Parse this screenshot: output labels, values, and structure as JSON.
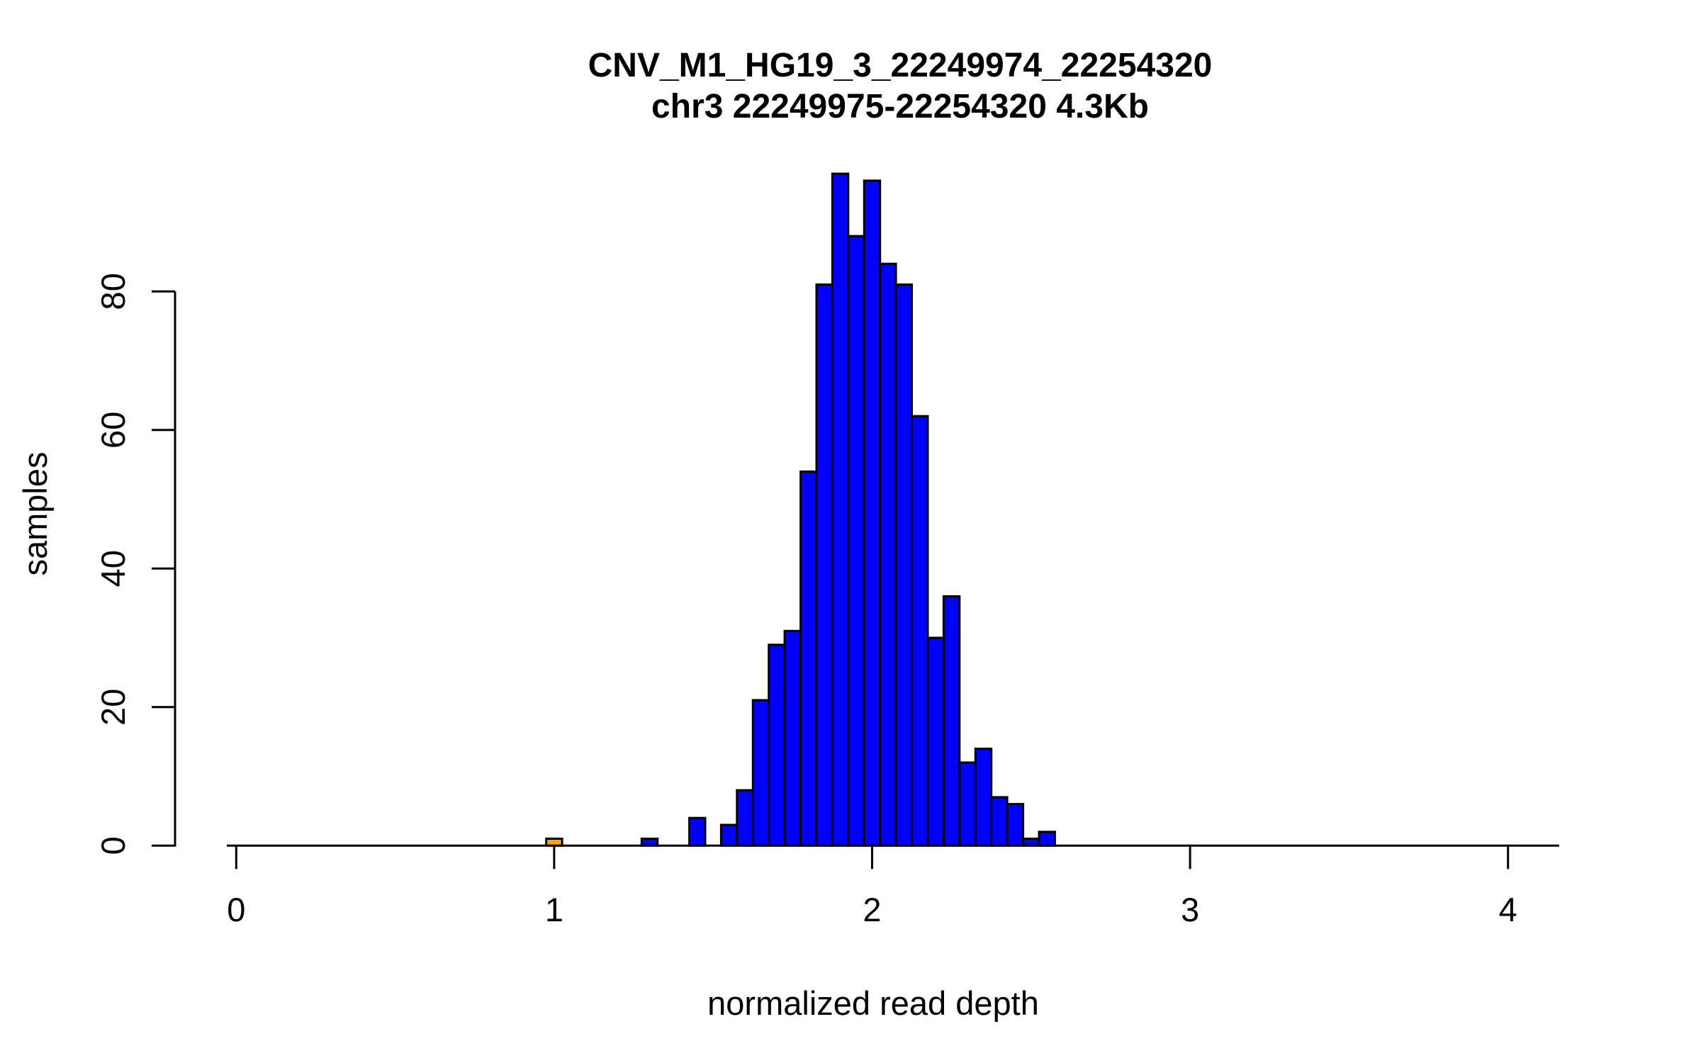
{
  "title": {
    "line1": "CNV_M1_HG19_3_22249974_22254320",
    "line2": "chr3 22249975-22254320 4.3Kb"
  },
  "chart_data": {
    "type": "bar",
    "subtype": "histogram",
    "title": "CNV_M1_HG19_3_22249974_22254320",
    "subtitle": "chr3 22249975-22254320 4.3Kb",
    "xlabel": "normalized read depth",
    "ylabel": "samples",
    "x_ticks": [
      0,
      1,
      2,
      3,
      4
    ],
    "y_ticks": [
      0,
      20,
      40,
      60,
      80
    ],
    "xlim": [
      -0.03,
      4.16
    ],
    "ylim": [
      0,
      100
    ],
    "grid": "off",
    "legend": "none",
    "bin_width": 0.05,
    "bar_fill_default": "#0000FF",
    "highlight_fill": "#FFA500",
    "bar_border_color": "#000000",
    "axis_color": "#000000",
    "bars": [
      {
        "center": 1.0,
        "count": 1,
        "color": "#FFA500"
      },
      {
        "center": 1.3,
        "count": 1,
        "color": "#0000FF"
      },
      {
        "center": 1.45,
        "count": 4,
        "color": "#0000FF"
      },
      {
        "center": 1.55,
        "count": 3,
        "color": "#0000FF"
      },
      {
        "center": 1.6,
        "count": 8,
        "color": "#0000FF"
      },
      {
        "center": 1.65,
        "count": 21,
        "color": "#0000FF"
      },
      {
        "center": 1.7,
        "count": 29,
        "color": "#0000FF"
      },
      {
        "center": 1.75,
        "count": 31,
        "color": "#0000FF"
      },
      {
        "center": 1.8,
        "count": 54,
        "color": "#0000FF"
      },
      {
        "center": 1.85,
        "count": 81,
        "color": "#0000FF"
      },
      {
        "center": 1.9,
        "count": 97,
        "color": "#0000FF"
      },
      {
        "center": 1.95,
        "count": 88,
        "color": "#0000FF"
      },
      {
        "center": 2.0,
        "count": 96,
        "color": "#0000FF"
      },
      {
        "center": 2.05,
        "count": 84,
        "color": "#0000FF"
      },
      {
        "center": 2.1,
        "count": 81,
        "color": "#0000FF"
      },
      {
        "center": 2.15,
        "count": 62,
        "color": "#0000FF"
      },
      {
        "center": 2.2,
        "count": 30,
        "color": "#0000FF"
      },
      {
        "center": 2.25,
        "count": 36,
        "color": "#0000FF"
      },
      {
        "center": 2.3,
        "count": 12,
        "color": "#0000FF"
      },
      {
        "center": 2.35,
        "count": 14,
        "color": "#0000FF"
      },
      {
        "center": 2.4,
        "count": 7,
        "color": "#0000FF"
      },
      {
        "center": 2.45,
        "count": 6,
        "color": "#0000FF"
      },
      {
        "center": 2.5,
        "count": 1,
        "color": "#0000FF"
      },
      {
        "center": 2.55,
        "count": 2,
        "color": "#0000FF"
      }
    ]
  }
}
